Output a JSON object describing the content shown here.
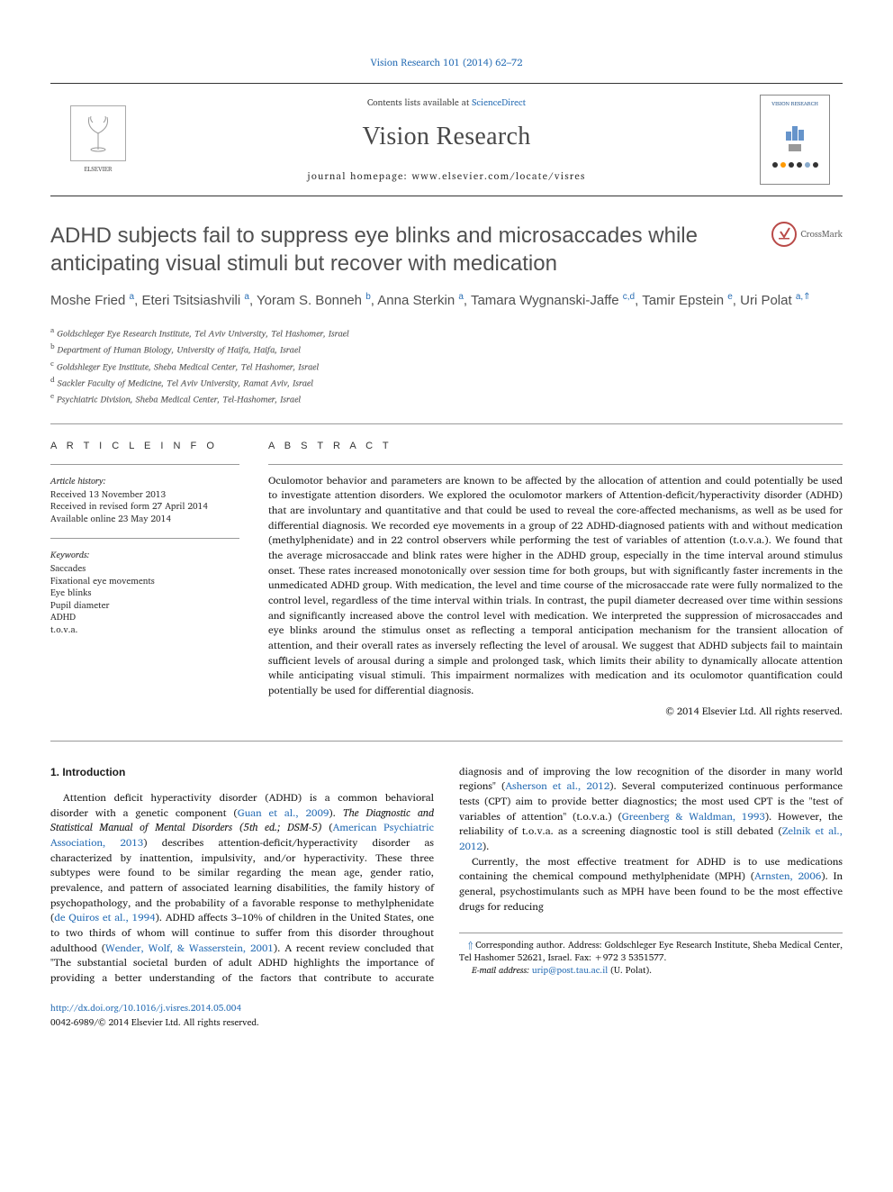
{
  "top_link": "Vision Research 101 (2014) 62–72",
  "header": {
    "contents_prefix": "Contents lists available at ",
    "contents_link": "ScienceDirect",
    "journal_name": "Vision Research",
    "homepage_prefix": "journal homepage: ",
    "homepage_url": "www.elsevier.com/locate/visres",
    "publisher_name": "ELSEVIER",
    "cover_bars_heights": [
      10,
      16,
      12
    ],
    "cover_title": "VISION RESEARCH",
    "cover_dot_colors": [
      "#333",
      "#f90",
      "#333",
      "#333",
      "#8ac",
      "#333"
    ]
  },
  "crossmark_label": "CrossMark",
  "article": {
    "title": "ADHD subjects fail to suppress eye blinks and microsaccades while anticipating visual stimuli but recover with medication",
    "authors_html": "Moshe Fried <sup>a</sup>, Eteri Tsitsiashvili <sup>a</sup>, Yoram S. Bonneh <sup>b</sup>, Anna Sterkin <sup>a</sup>, Tamara Wygnanski-Jaffe <sup>c,d</sup>, Tamir Epstein <sup>e</sup>, Uri Polat <sup>a,</sup>",
    "corr_mark": "⇑",
    "affiliations": [
      {
        "sup": "a",
        "text": "Goldschleger Eye Research Institute, Tel Aviv University, Tel Hashomer, Israel"
      },
      {
        "sup": "b",
        "text": "Department of Human Biology, University of Haifa, Haifa, Israel"
      },
      {
        "sup": "c",
        "text": "Goldshleger Eye Institute, Sheba Medical Center, Tel Hashomer, Israel"
      },
      {
        "sup": "d",
        "text": "Sackler Faculty of Medicine, Tel Aviv University, Ramat Aviv, Israel"
      },
      {
        "sup": "e",
        "text": "Psychiatric Division, Sheba Medical Center, Tel-Hashomer, Israel"
      }
    ]
  },
  "info": {
    "label": "A R T I C L E   I N F O",
    "history_label": "Article history:",
    "history": [
      "Received 13 November 2013",
      "Received in revised form 27 April 2014",
      "Available online 23 May 2014"
    ],
    "keywords_label": "Keywords:",
    "keywords": [
      "Saccades",
      "Fixational eye movements",
      "Eye blinks",
      "Pupil diameter",
      "ADHD",
      "t.o.v.a."
    ]
  },
  "abstract": {
    "label": "A B S T R A C T",
    "text": "Oculomotor behavior and parameters are known to be affected by the allocation of attention and could potentially be used to investigate attention disorders. We explored the oculomotor markers of Attention-deficit/hyperactivity disorder (ADHD) that are involuntary and quantitative and that could be used to reveal the core-affected mechanisms, as well as be used for differential diagnosis. We recorded eye movements in a group of 22 ADHD-diagnosed patients with and without medication (methylphenidate) and in 22 control observers while performing the test of variables of attention (t.o.v.a.). We found that the average microsaccade and blink rates were higher in the ADHD group, especially in the time interval around stimulus onset. These rates increased monotonically over session time for both groups, but with significantly faster increments in the unmedicated ADHD group. With medication, the level and time course of the microsaccade rate were fully normalized to the control level, regardless of the time interval within trials. In contrast, the pupil diameter decreased over time within sessions and significantly increased above the control level with medication. We interpreted the suppression of microsaccades and eye blinks around the stimulus onset as reflecting a temporal anticipation mechanism for the transient allocation of attention, and their overall rates as inversely reflecting the level of arousal. We suggest that ADHD subjects fail to maintain sufficient levels of arousal during a simple and prolonged task, which limits their ability to dynamically allocate attention while anticipating visual stimuli. This impairment normalizes with medication and its oculomotor quantification could potentially be used for differential diagnosis.",
    "copyright": "© 2014 Elsevier Ltd. All rights reserved."
  },
  "body": {
    "heading": "1. Introduction",
    "p1_a": "Attention deficit hyperactivity disorder (ADHD) is a common behavioral disorder with a genetic component (",
    "p1_r1": "Guan et al., 2009",
    "p1_b": "). ",
    "p1_c": "The Diagnostic and Statistical Manual of Mental Disorders (5th ed.; DSM-5)",
    "p1_d": " (",
    "p1_r2": "American Psychiatric Association, 2013",
    "p1_e": ") describes attention-deficit/hyperactivity disorder as characterized by inattention, impulsivity, and/or hyperactivity. These three subtypes were found to be similar regarding the mean age, gender ratio, prevalence, and pattern of associated learning disabilities, the family history of psychopathology, and the probability of a favorable response to methylphenidate (",
    "p1_r3": "de Quiros et al., 1994",
    "p1_f": "). ADHD affects 3–10% of children in the United States, one to two thirds of whom will continue to suffer from this disorder throughout adulthood (",
    "p1_r4": "Wender, Wolf, & Wasserstein, 2001",
    "p1_g": "). A recent review concluded that \"The substantial societal burden of adult ADHD highlights the importance of providing a better understanding of the factors that contribute to accurate diagnosis and of improving the low recognition of the disorder in many world regions\" (",
    "p1_r5": "Asherson et al., 2012",
    "p1_h": "). Several computerized continuous performance tests (CPT) aim to provide better diagnostics; the most used CPT is the \"test of variables of attention\" (t.o.v.a.) (",
    "p1_r6": "Greenberg & Waldman, 1993",
    "p1_i": "). However, the reliability of t.o.v.a. as a screening diagnostic tool is still debated (",
    "p1_r7": "Zelnik et al., 2012",
    "p1_j": ").",
    "p2_a": "Currently, the most effective treatment for ADHD is to use medications containing the chemical compound methylphenidate (MPH) (",
    "p2_r1": "Arnsten, 2006",
    "p2_b": "). In general, psychostimulants such as MPH have been found to be the most effective drugs for reducing"
  },
  "footer": {
    "corr_mark": "⇑",
    "corr_text": " Corresponding author. Address: Goldschleger Eye Research Institute, Sheba Medical Center, Tel Hashomer 52621, Israel. Fax: +972 3 5351577.",
    "email_label": "E-mail address: ",
    "email": "urip@post.tau.ac.il",
    "email_suffix": " (U. Polat)."
  },
  "doi": {
    "url": "http://dx.doi.org/10.1016/j.visres.2014.05.004",
    "issn_line": "0042-6989/© 2014 Elsevier Ltd. All rights reserved."
  },
  "colors": {
    "link": "#2a6fb5",
    "text": "#1a1a1a",
    "heading": "#505050",
    "rule": "#999"
  }
}
